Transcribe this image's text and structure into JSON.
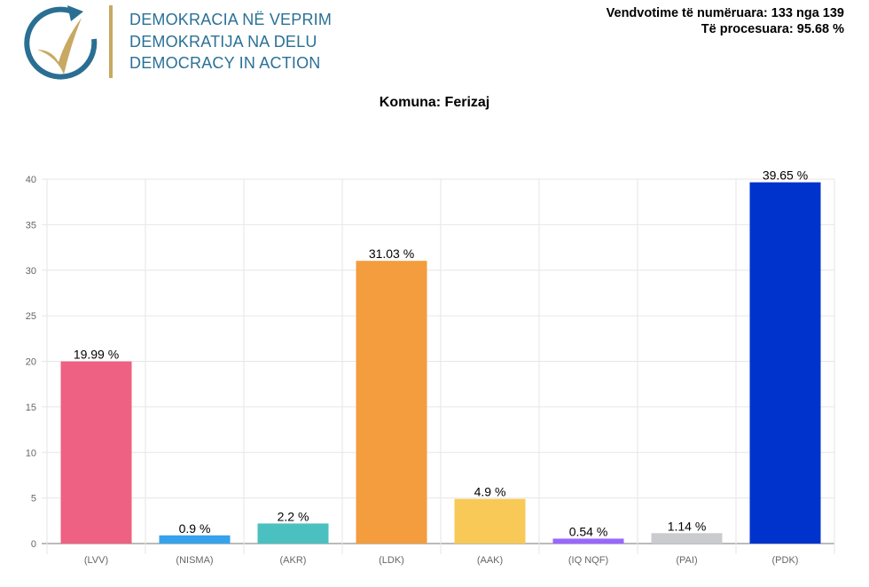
{
  "logo": {
    "lines": [
      "DEMOKRACIA NË VEPRIM",
      "DEMOKRATIJA NA DELU",
      "DEMOCRACY IN ACTION"
    ],
    "colors": {
      "text": "#2a7196",
      "arc": "#2a6f93",
      "check": "#c8a962"
    }
  },
  "status": {
    "counted": "Vendvotime të numëruara: 133 nga 139",
    "processed": "Të procesuara: 95.68 %"
  },
  "chart_data": {
    "type": "bar",
    "title": "Komuna: Ferizaj",
    "categories": [
      "(LVV)",
      "(NISMA)",
      "(AKR)",
      "(LDK)",
      "(AAK)",
      "(IQ NQF)",
      "(PAI)",
      "(PDK)"
    ],
    "values": [
      19.99,
      0.9,
      2.2,
      31.03,
      4.9,
      0.54,
      1.14,
      39.65
    ],
    "data_labels": [
      "19.99 %",
      "0.9 %",
      "2.2 %",
      "31.03 %",
      "4.9 %",
      "0.54 %",
      "1.14 %",
      "39.65 %"
    ],
    "colors": [
      "#ee6182",
      "#36a2eb",
      "#4bc0c0",
      "#f39d3e",
      "#f8c956",
      "#9966ff",
      "#c9cbcf",
      "#0033cc"
    ],
    "ylim": [
      0,
      40
    ],
    "yticks": [
      "0",
      "5",
      "10",
      "15",
      "20",
      "25",
      "30",
      "35",
      "40"
    ],
    "grid": true,
    "legend": "none"
  }
}
